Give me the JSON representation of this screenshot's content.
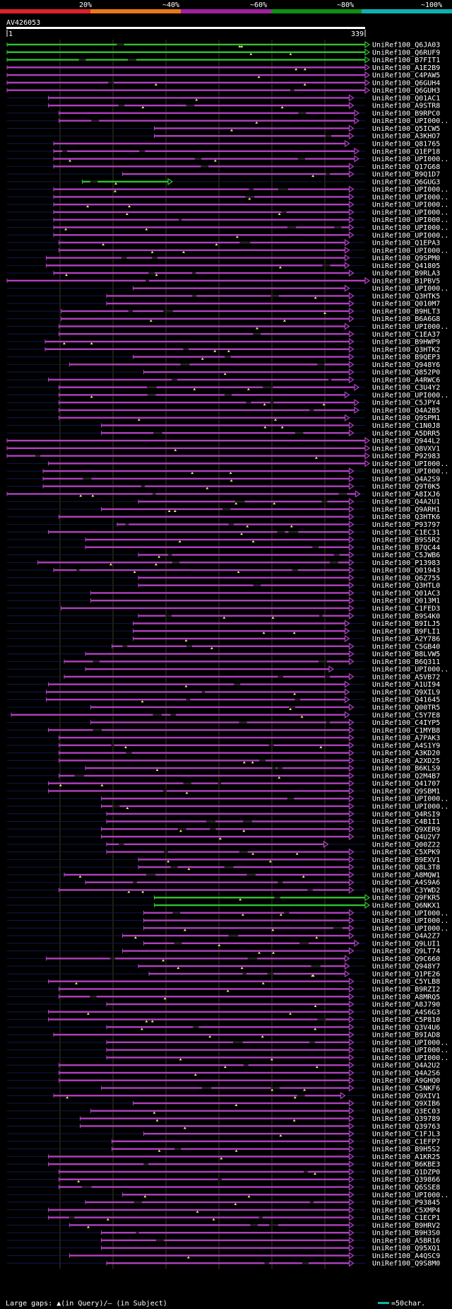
{
  "chart_data": {
    "type": "alignment-overview",
    "title": "AV426053",
    "query_start": "1",
    "query_end": "339",
    "query_length": 339,
    "legend": {
      "identity_labels": [
        "20%",
        "~40%",
        "~60%",
        "~80%",
        "~100%"
      ],
      "identity_colors": [
        "#e0202a",
        "#e87818",
        "#a020a0",
        "#109010",
        "#10b0b0"
      ],
      "gap_note": "Large gaps: ▲(in Query)/— (in Subject)",
      "scale_note": "=50char.",
      "scale_chars": 50
    },
    "colors": {
      "magenta": "#b040c0",
      "green": "#30c030",
      "gap_marker": "#f0f080"
    },
    "hits": [
      {
        "id": "UniRef100_Q6JA03",
        "start": 1,
        "end": 339,
        "color": "green"
      },
      {
        "id": "UniRef100_Q6RUF9",
        "start": 1,
        "end": 339,
        "color": "green"
      },
      {
        "id": "UniRef100_B7FIT1",
        "start": 1,
        "end": 339,
        "color": "green"
      },
      {
        "id": "UniRef100_A1E2B9",
        "start": 1,
        "end": 339,
        "color": "magenta"
      },
      {
        "id": "UniRef100_C4PAW5",
        "start": 1,
        "end": 339,
        "color": "magenta"
      },
      {
        "id": "UniRef100_Q6GUH4",
        "start": 1,
        "end": 339,
        "color": "magenta"
      },
      {
        "id": "UniRef100_Q6GUH3",
        "start": 1,
        "end": 339,
        "color": "magenta"
      },
      {
        "id": "UniRef100_Q01AC1",
        "start": 40,
        "end": 324,
        "color": "magenta"
      },
      {
        "id": "UniRef100_A9STR8",
        "start": 40,
        "end": 324,
        "color": "magenta"
      },
      {
        "id": "UniRef100_B9RPC0",
        "start": 50,
        "end": 329,
        "color": "magenta"
      },
      {
        "id": "UniRef100_UPI000..",
        "start": 50,
        "end": 329,
        "color": "magenta"
      },
      {
        "id": "UniRef100_Q5ICW5",
        "start": 140,
        "end": 324,
        "color": "magenta"
      },
      {
        "id": "UniRef100_A3KHO7",
        "start": 140,
        "end": 324,
        "color": "magenta"
      },
      {
        "id": "UniRef100_Q81765",
        "start": 45,
        "end": 320,
        "color": "magenta"
      },
      {
        "id": "UniRef100_Q1EP18",
        "start": 45,
        "end": 329,
        "color": "magenta"
      },
      {
        "id": "UniRef100_UPI000..",
        "start": 45,
        "end": 329,
        "color": "magenta"
      },
      {
        "id": "UniRef100_Q17G68",
        "start": 45,
        "end": 324,
        "color": "magenta"
      },
      {
        "id": "UniRef100_B9Q1D7",
        "start": 110,
        "end": 324,
        "color": "magenta"
      },
      {
        "id": "UniRef100_Q6GUG3",
        "start": 72,
        "end": 153,
        "color": "green"
      },
      {
        "id": "UniRef100_UPI000..",
        "start": 45,
        "end": 324,
        "color": "magenta"
      },
      {
        "id": "UniRef100_UPI000..",
        "start": 45,
        "end": 324,
        "color": "magenta"
      },
      {
        "id": "UniRef100_UPI000..",
        "start": 45,
        "end": 324,
        "color": "magenta"
      },
      {
        "id": "UniRef100_UPI000..",
        "start": 45,
        "end": 324,
        "color": "magenta"
      },
      {
        "id": "UniRef100_UPI000..",
        "start": 45,
        "end": 324,
        "color": "magenta"
      },
      {
        "id": "UniRef100_UPI000..",
        "start": 45,
        "end": 324,
        "color": "magenta"
      },
      {
        "id": "UniRef100_UPI000..",
        "start": 45,
        "end": 324,
        "color": "magenta"
      },
      {
        "id": "UniRef100_Q1EPA3",
        "start": 50,
        "end": 320,
        "color": "magenta"
      },
      {
        "id": "UniRef100_UPI000..",
        "start": 50,
        "end": 320,
        "color": "magenta"
      },
      {
        "id": "UniRef100_Q9SPM0",
        "start": 38,
        "end": 320,
        "color": "magenta"
      },
      {
        "id": "UniRef100_Q41805",
        "start": 38,
        "end": 320,
        "color": "magenta"
      },
      {
        "id": "UniRef100_B9RLA3",
        "start": 45,
        "end": 324,
        "color": "magenta"
      },
      {
        "id": "UniRef100_B1PBV5",
        "start": 1,
        "end": 339,
        "color": "magenta"
      },
      {
        "id": "UniRef100_UPI000..",
        "start": 120,
        "end": 320,
        "color": "magenta"
      },
      {
        "id": "UniRef100_Q3HTK5",
        "start": 95,
        "end": 324,
        "color": "magenta"
      },
      {
        "id": "UniRef100_Q010M7",
        "start": 95,
        "end": 324,
        "color": "magenta"
      },
      {
        "id": "UniRef100_B9HLT3",
        "start": 52,
        "end": 324,
        "color": "magenta"
      },
      {
        "id": "UniRef100_B6A6G8",
        "start": 52,
        "end": 324,
        "color": "magenta"
      },
      {
        "id": "UniRef100_UPI000..",
        "start": 50,
        "end": 320,
        "color": "magenta"
      },
      {
        "id": "UniRef100_C1EA37",
        "start": 50,
        "end": 324,
        "color": "magenta"
      },
      {
        "id": "UniRef100_B9HWP9",
        "start": 37,
        "end": 324,
        "color": "magenta"
      },
      {
        "id": "UniRef100_Q3HTK2",
        "start": 37,
        "end": 324,
        "color": "magenta"
      },
      {
        "id": "UniRef100_B9QEP3",
        "start": 120,
        "end": 324,
        "color": "magenta"
      },
      {
        "id": "UniRef100_Q948Y6",
        "start": 60,
        "end": 324,
        "color": "magenta"
      },
      {
        "id": "UniRef100_Q852P0",
        "start": 130,
        "end": 324,
        "color": "magenta"
      },
      {
        "id": "UniRef100_A4RWC6",
        "start": 40,
        "end": 324,
        "color": "magenta"
      },
      {
        "id": "UniRef100_C3U4Y2",
        "start": 50,
        "end": 329,
        "color": "magenta"
      },
      {
        "id": "UniRef100_UPI000..",
        "start": 50,
        "end": 320,
        "color": "magenta"
      },
      {
        "id": "UniRef100_C5JPY4",
        "start": 50,
        "end": 329,
        "color": "magenta"
      },
      {
        "id": "UniRef100_Q4A2B5",
        "start": 50,
        "end": 329,
        "color": "magenta"
      },
      {
        "id": "UniRef100_Q9SPM1",
        "start": 50,
        "end": 320,
        "color": "magenta"
      },
      {
        "id": "UniRef100_C1N0J8",
        "start": 90,
        "end": 324,
        "color": "magenta"
      },
      {
        "id": "UniRef100_A5DRR5",
        "start": 90,
        "end": 324,
        "color": "magenta"
      },
      {
        "id": "UniRef100_Q944L2",
        "start": 1,
        "end": 339,
        "color": "magenta"
      },
      {
        "id": "UniRef100_Q8VXV1",
        "start": 1,
        "end": 339,
        "color": "magenta"
      },
      {
        "id": "UniRef100_P92983",
        "start": 1,
        "end": 339,
        "color": "magenta"
      },
      {
        "id": "UniRef100_UPI000..",
        "start": 40,
        "end": 339,
        "color": "magenta"
      },
      {
        "id": "UniRef100_UPI000..",
        "start": 35,
        "end": 324,
        "color": "magenta"
      },
      {
        "id": "UniRef100_Q4A2S9",
        "start": 35,
        "end": 324,
        "color": "magenta"
      },
      {
        "id": "UniRef100_Q9T0K5",
        "start": 35,
        "end": 324,
        "color": "magenta"
      },
      {
        "id": "UniRef100_A8IXJ6",
        "start": 1,
        "end": 330,
        "color": "magenta"
      },
      {
        "id": "UniRef100_Q4A2U1",
        "start": 125,
        "end": 324,
        "color": "magenta"
      },
      {
        "id": "UniRef100_Q9ARH1",
        "start": 90,
        "end": 324,
        "color": "magenta"
      },
      {
        "id": "UniRef100_Q3HTK6",
        "start": 50,
        "end": 324,
        "color": "magenta"
      },
      {
        "id": "UniRef100_P93797",
        "start": 105,
        "end": 324,
        "color": "magenta"
      },
      {
        "id": "UniRef100_C1EC31",
        "start": 40,
        "end": 324,
        "color": "magenta"
      },
      {
        "id": "UniRef100_B9S5R2",
        "start": 75,
        "end": 324,
        "color": "magenta"
      },
      {
        "id": "UniRef100_B7QC44",
        "start": 75,
        "end": 324,
        "color": "magenta"
      },
      {
        "id": "UniRef100_C5JWB6",
        "start": 125,
        "end": 324,
        "color": "magenta"
      },
      {
        "id": "UniRef100_P13983",
        "start": 30,
        "end": 324,
        "color": "magenta"
      },
      {
        "id": "UniRef100_Q01943",
        "start": 45,
        "end": 324,
        "color": "magenta"
      },
      {
        "id": "UniRef100_Q6Z755",
        "start": 125,
        "end": 324,
        "color": "magenta"
      },
      {
        "id": "UniRef100_Q3HTL0",
        "start": 125,
        "end": 324,
        "color": "magenta"
      },
      {
        "id": "UniRef100_Q01AC3",
        "start": 80,
        "end": 324,
        "color": "magenta"
      },
      {
        "id": "UniRef100_Q013M1",
        "start": 80,
        "end": 324,
        "color": "magenta"
      },
      {
        "id": "UniRef100_C1FED3",
        "start": 52,
        "end": 324,
        "color": "magenta"
      },
      {
        "id": "UniRef100_B9S4K0",
        "start": 125,
        "end": 324,
        "color": "magenta"
      },
      {
        "id": "UniRef100_B9ILJ5",
        "start": 120,
        "end": 320,
        "color": "magenta"
      },
      {
        "id": "UniRef100_B9FLI1",
        "start": 120,
        "end": 320,
        "color": "magenta"
      },
      {
        "id": "UniRef100_A2Y786",
        "start": 120,
        "end": 320,
        "color": "magenta"
      },
      {
        "id": "UniRef100_C5GB40",
        "start": 100,
        "end": 324,
        "color": "magenta"
      },
      {
        "id": "UniRef100_B8LVW5",
        "start": 75,
        "end": 324,
        "color": "magenta"
      },
      {
        "id": "UniRef100_B6Q311",
        "start": 55,
        "end": 324,
        "color": "magenta"
      },
      {
        "id": "UniRef100_UPI000..",
        "start": 75,
        "end": 305,
        "color": "magenta"
      },
      {
        "id": "UniRef100_A5VB72",
        "start": 55,
        "end": 324,
        "color": "magenta"
      },
      {
        "id": "UniRef100_A1UI94",
        "start": 40,
        "end": 320,
        "color": "magenta"
      },
      {
        "id": "UniRef100_Q9XIL9",
        "start": 38,
        "end": 320,
        "color": "magenta"
      },
      {
        "id": "UniRef100_Q41645",
        "start": 38,
        "end": 320,
        "color": "magenta"
      },
      {
        "id": "UniRef100_Q00TR5",
        "start": 80,
        "end": 324,
        "color": "magenta"
      },
      {
        "id": "UniRef100_C5Y7E8",
        "start": 5,
        "end": 320,
        "color": "magenta"
      },
      {
        "id": "UniRef100_C4IYP5",
        "start": 80,
        "end": 324,
        "color": "magenta"
      },
      {
        "id": "UniRef100_C1MYB8",
        "start": 40,
        "end": 324,
        "color": "magenta"
      },
      {
        "id": "UniRef100_A7PAK3",
        "start": 50,
        "end": 324,
        "color": "magenta"
      },
      {
        "id": "UniRef100_A4S1Y9",
        "start": 50,
        "end": 324,
        "color": "magenta"
      },
      {
        "id": "UniRef100_A3KD20",
        "start": 50,
        "end": 324,
        "color": "magenta"
      },
      {
        "id": "UniRef100_A2XD25",
        "start": 50,
        "end": 324,
        "color": "magenta"
      },
      {
        "id": "UniRef100_B6KLS9",
        "start": 75,
        "end": 324,
        "color": "magenta"
      },
      {
        "id": "UniRef100_Q2M4B7",
        "start": 50,
        "end": 324,
        "color": "magenta"
      },
      {
        "id": "UniRef100_Q41707",
        "start": 40,
        "end": 324,
        "color": "magenta"
      },
      {
        "id": "UniRef100_Q9SBM1",
        "start": 40,
        "end": 324,
        "color": "magenta"
      },
      {
        "id": "UniRef100_UPI000..",
        "start": 90,
        "end": 324,
        "color": "magenta"
      },
      {
        "id": "UniRef100_UPI000..",
        "start": 90,
        "end": 324,
        "color": "magenta"
      },
      {
        "id": "UniRef100_Q4RSI9",
        "start": 95,
        "end": 324,
        "color": "magenta"
      },
      {
        "id": "UniRef100_C4B1I1",
        "start": 95,
        "end": 324,
        "color": "magenta"
      },
      {
        "id": "UniRef100_Q9XER9",
        "start": 90,
        "end": 324,
        "color": "magenta"
      },
      {
        "id": "UniRef100_Q4U2V7",
        "start": 90,
        "end": 324,
        "color": "magenta"
      },
      {
        "id": "UniRef100_Q00Z22",
        "start": 95,
        "end": 300,
        "color": "magenta"
      },
      {
        "id": "UniRef100_C5XPK9",
        "start": 95,
        "end": 324,
        "color": "magenta"
      },
      {
        "id": "UniRef100_B9EXV1",
        "start": 125,
        "end": 324,
        "color": "magenta"
      },
      {
        "id": "UniRef100_Q8L3T8",
        "start": 125,
        "end": 324,
        "color": "magenta"
      },
      {
        "id": "UniRef100_A8MQW1",
        "start": 55,
        "end": 324,
        "color": "magenta"
      },
      {
        "id": "UniRef100_A4S9A6",
        "start": 75,
        "end": 324,
        "color": "magenta"
      },
      {
        "id": "UniRef100_C3YWD2",
        "start": 50,
        "end": 324,
        "color": "magenta"
      },
      {
        "id": "UniRef100_Q9FKR5",
        "start": 140,
        "end": 339,
        "color": "green"
      },
      {
        "id": "UniRef100_Q6NKX1",
        "start": 140,
        "end": 339,
        "color": "green"
      },
      {
        "id": "UniRef100_UPI000..",
        "start": 130,
        "end": 324,
        "color": "magenta"
      },
      {
        "id": "UniRef100_UPI000..",
        "start": 130,
        "end": 324,
        "color": "magenta"
      },
      {
        "id": "UniRef100_UPI000..",
        "start": 130,
        "end": 324,
        "color": "magenta"
      },
      {
        "id": "UniRef100_Q4A2Z7",
        "start": 110,
        "end": 324,
        "color": "magenta"
      },
      {
        "id": "UniRef100_Q9LUI1",
        "start": 130,
        "end": 329,
        "color": "magenta"
      },
      {
        "id": "UniRef100_Q9LT74",
        "start": 110,
        "end": 324,
        "color": "magenta"
      },
      {
        "id": "UniRef100_Q9C660",
        "start": 38,
        "end": 320,
        "color": "magenta"
      },
      {
        "id": "UniRef100_Q948Y7",
        "start": 125,
        "end": 320,
        "color": "magenta"
      },
      {
        "id": "UniRef100_Q1PE26",
        "start": 135,
        "end": 320,
        "color": "magenta"
      },
      {
        "id": "UniRef100_C5YLB8",
        "start": 40,
        "end": 324,
        "color": "magenta"
      },
      {
        "id": "UniRef100_B9RZI2",
        "start": 50,
        "end": 324,
        "color": "magenta"
      },
      {
        "id": "UniRef100_A8MRQ5",
        "start": 50,
        "end": 324,
        "color": "magenta"
      },
      {
        "id": "UniRef100_A8J790",
        "start": 95,
        "end": 324,
        "color": "magenta"
      },
      {
        "id": "UniRef100_A4S6G3",
        "start": 40,
        "end": 324,
        "color": "magenta"
      },
      {
        "id": "UniRef100_C5P810",
        "start": 40,
        "end": 324,
        "color": "magenta"
      },
      {
        "id": "UniRef100_Q3V4U6",
        "start": 95,
        "end": 324,
        "color": "magenta"
      },
      {
        "id": "UniRef100_B9IAD8",
        "start": 45,
        "end": 324,
        "color": "magenta"
      },
      {
        "id": "UniRef100_UPI000..",
        "start": 95,
        "end": 324,
        "color": "magenta"
      },
      {
        "id": "UniRef100_UPI000..",
        "start": 95,
        "end": 324,
        "color": "magenta"
      },
      {
        "id": "UniRef100_UPI000..",
        "start": 95,
        "end": 324,
        "color": "magenta"
      },
      {
        "id": "UniRef100_Q4A2U2",
        "start": 50,
        "end": 324,
        "color": "magenta"
      },
      {
        "id": "UniRef100_Q4A2S6",
        "start": 50,
        "end": 324,
        "color": "magenta"
      },
      {
        "id": "UniRef100_A9GHQ0",
        "start": 50,
        "end": 324,
        "color": "magenta"
      },
      {
        "id": "UniRef100_C5NKF6",
        "start": 90,
        "end": 324,
        "color": "magenta"
      },
      {
        "id": "UniRef100_Q9XIV1",
        "start": 45,
        "end": 316,
        "color": "magenta"
      },
      {
        "id": "UniRef100_Q9XIB6",
        "start": 120,
        "end": 324,
        "color": "magenta"
      },
      {
        "id": "UniRef100_Q3EC03",
        "start": 80,
        "end": 324,
        "color": "magenta"
      },
      {
        "id": "UniRef100_Q39789",
        "start": 70,
        "end": 324,
        "color": "magenta"
      },
      {
        "id": "UniRef100_Q39763",
        "start": 70,
        "end": 324,
        "color": "magenta"
      },
      {
        "id": "UniRef100_C1FJL3",
        "start": 130,
        "end": 324,
        "color": "magenta"
      },
      {
        "id": "UniRef100_C1EFP7",
        "start": 100,
        "end": 324,
        "color": "magenta"
      },
      {
        "id": "UniRef100_B9H5S2",
        "start": 100,
        "end": 324,
        "color": "magenta"
      },
      {
        "id": "UniRef100_A1KR25",
        "start": 40,
        "end": 324,
        "color": "magenta"
      },
      {
        "id": "UniRef100_B6KBE3",
        "start": 40,
        "end": 324,
        "color": "magenta"
      },
      {
        "id": "UniRef100_Q1DZP0",
        "start": 50,
        "end": 324,
        "color": "magenta"
      },
      {
        "id": "UniRef100_Q39866",
        "start": 50,
        "end": 324,
        "color": "magenta"
      },
      {
        "id": "UniRef100_Q6SSE8",
        "start": 50,
        "end": 324,
        "color": "magenta"
      },
      {
        "id": "UniRef100_UPI000..",
        "start": 110,
        "end": 324,
        "color": "magenta"
      },
      {
        "id": "UniRef100_P93845",
        "start": 75,
        "end": 324,
        "color": "magenta"
      },
      {
        "id": "UniRef100_C5XMP4",
        "start": 40,
        "end": 324,
        "color": "magenta"
      },
      {
        "id": "UniRef100_C1ECP1",
        "start": 40,
        "end": 324,
        "color": "magenta"
      },
      {
        "id": "UniRef100_B9HRV2",
        "start": 60,
        "end": 324,
        "color": "magenta"
      },
      {
        "id": "UniRef100_B9H3S0",
        "start": 90,
        "end": 324,
        "color": "magenta"
      },
      {
        "id": "UniRef100_A5BR16",
        "start": 90,
        "end": 324,
        "color": "magenta"
      },
      {
        "id": "UniRef100_Q95XQ1",
        "start": 90,
        "end": 324,
        "color": "magenta"
      },
      {
        "id": "UniRef100_A4QSC9",
        "start": 60,
        "end": 324,
        "color": "magenta"
      },
      {
        "id": "UniRef100_Q9S8M0",
        "start": 95,
        "end": 324,
        "color": "magenta"
      }
    ]
  }
}
